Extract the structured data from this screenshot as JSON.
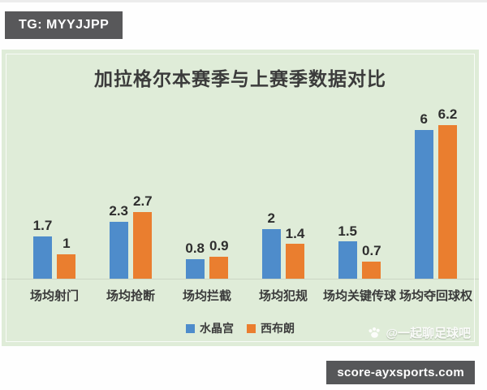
{
  "tg_badge": {
    "label": "TG: MYYJJPP"
  },
  "site_badge": {
    "label": "score-ayxsports.com"
  },
  "watermark": {
    "text": "@一起聊足球吧",
    "icon": "paw-icon"
  },
  "panel": {
    "background": "#dfecd8"
  },
  "chart_data": {
    "type": "bar",
    "title": "加拉格尔本赛季与上赛季数据对比",
    "categories": [
      "场均射门",
      "场均抢断",
      "场均拦截",
      "场均犯规",
      "场均关键传球",
      "场均夺回球权"
    ],
    "series": [
      {
        "name": "水晶宫",
        "color": "#4e8ccb",
        "values": [
          1.7,
          2.3,
          0.8,
          2,
          1.5,
          6
        ]
      },
      {
        "name": "西布朗",
        "color": "#ea7e2f",
        "values": [
          1,
          2.7,
          0.9,
          1.4,
          0.7,
          6.2
        ]
      }
    ],
    "xlabel": "",
    "ylabel": "",
    "ylim": [
      0,
      6.8
    ],
    "grid": false,
    "value_labels": true,
    "legend_position": "bottom"
  }
}
